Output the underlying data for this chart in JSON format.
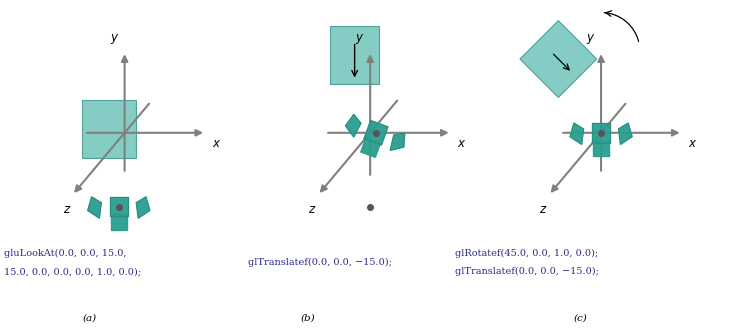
{
  "teal_fill": "#5bbcb0",
  "teal_dark": "#2a8c80",
  "teal_body": "#2a9d8f",
  "axis_color": "#808080",
  "text_color": "#2c2c8c",
  "figure_width": 7.33,
  "figure_height": 3.32,
  "label_a": "(a)",
  "label_b": "(b)",
  "label_c": "(c)",
  "caption_a1": "gluLookAt(0.0, 0.0, 15.0,",
  "caption_a2": "15.0, 0.0, 0.0, 0.0, 1.0, 0.0);",
  "caption_b": "glTranslatef(0.0, 0.0, −15.0);",
  "caption_c1": "glRotatef(45.0, 0.0, 1.0, 0.0);",
  "caption_c2": "glTranslatef(0.0, 0.0, −15.0);"
}
